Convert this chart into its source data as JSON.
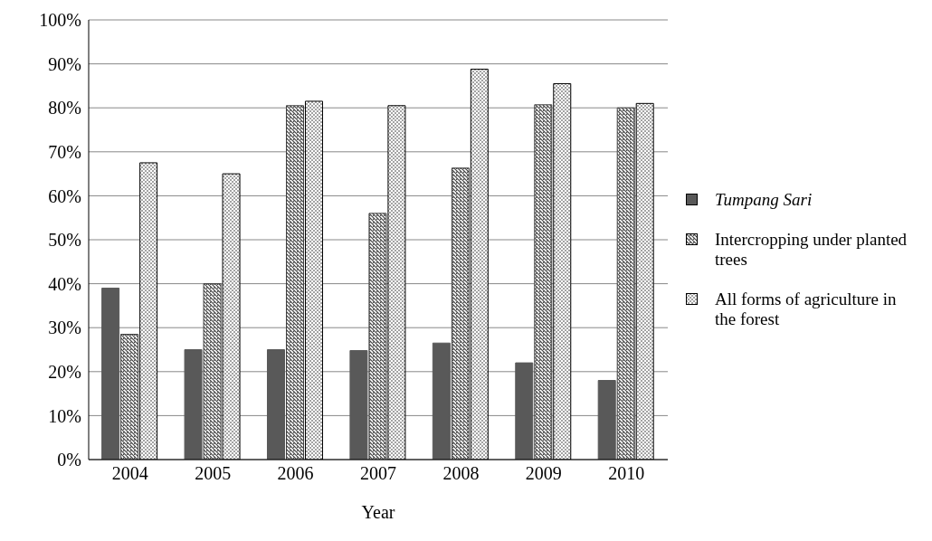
{
  "chart_data": {
    "type": "bar",
    "xlabel": "Year",
    "categories": [
      "2004",
      "2005",
      "2006",
      "2007",
      "2008",
      "2009",
      "2010"
    ],
    "series": [
      {
        "name": "Tumpang Sari",
        "color": "#595959",
        "values": [
          39,
          25,
          25,
          24.8,
          26.5,
          22,
          18
        ]
      },
      {
        "name": "Intercropping under planted trees",
        "color": "#404040",
        "values": [
          28.5,
          40,
          80.5,
          56,
          66.3,
          80.7,
          80
        ]
      },
      {
        "name": "All forms of agriculture in the forest",
        "color": "#000000",
        "values": [
          67.5,
          65,
          81.5,
          80.5,
          88.8,
          85.5,
          81
        ]
      }
    ],
    "ylim": [
      0,
      100
    ],
    "yticks": [
      {
        "value": 0,
        "label": "0%"
      },
      {
        "value": 10,
        "label": "10%"
      },
      {
        "value": 20,
        "label": "20%"
      },
      {
        "value": 30,
        "label": "30%"
      },
      {
        "value": 40,
        "label": "40%"
      },
      {
        "value": 50,
        "label": "50%"
      },
      {
        "value": 60,
        "label": "60%"
      },
      {
        "value": 70,
        "label": "70%"
      },
      {
        "value": 80,
        "label": "80%"
      },
      {
        "value": 90,
        "label": "90%"
      },
      {
        "value": 100,
        "label": "100%"
      }
    ],
    "grid": "y",
    "legend": "right"
  }
}
